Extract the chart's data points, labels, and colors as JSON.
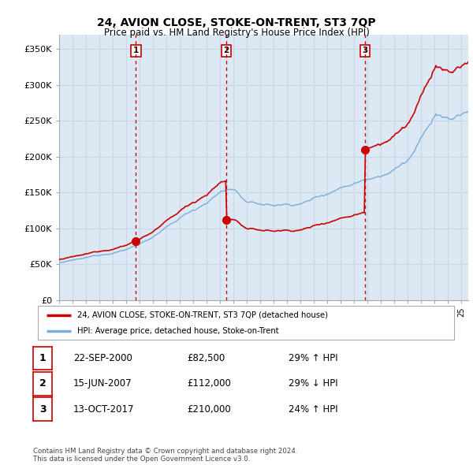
{
  "title": "24, AVION CLOSE, STOKE-ON-TRENT, ST3 7QP",
  "subtitle": "Price paid vs. HM Land Registry's House Price Index (HPI)",
  "ylabel_ticks": [
    "£0",
    "£50K",
    "£100K",
    "£150K",
    "£200K",
    "£250K",
    "£300K",
    "£350K"
  ],
  "ytick_values": [
    0,
    50000,
    100000,
    150000,
    200000,
    250000,
    300000,
    350000
  ],
  "ylim": [
    0,
    370000
  ],
  "xlim_start": 1995.0,
  "xlim_end": 2025.5,
  "transactions": [
    {
      "date_num": 2000.72,
      "price": 82500,
      "label": "1"
    },
    {
      "date_num": 2007.46,
      "price": 112000,
      "label": "2"
    },
    {
      "date_num": 2017.79,
      "price": 210000,
      "label": "3"
    }
  ],
  "vline_dates": [
    2000.72,
    2007.46,
    2017.79
  ],
  "legend_entries": [
    "24, AVION CLOSE, STOKE-ON-TRENT, ST3 7QP (detached house)",
    "HPI: Average price, detached house, Stoke-on-Trent"
  ],
  "table_rows": [
    {
      "label": "1",
      "date": "22-SEP-2000",
      "price": "£82,500",
      "hpi": "29% ↑ HPI"
    },
    {
      "label": "2",
      "date": "15-JUN-2007",
      "price": "£112,000",
      "hpi": "29% ↓ HPI"
    },
    {
      "label": "3",
      "date": "13-OCT-2017",
      "price": "£210,000",
      "hpi": "24% ↑ HPI"
    }
  ],
  "footer": "Contains HM Land Registry data © Crown copyright and database right 2024.\nThis data is licensed under the Open Government Licence v3.0.",
  "price_line_color": "#cc0000",
  "hpi_line_color": "#7aaddc",
  "vline_color": "#cc0000",
  "grid_color": "#c8d8e8",
  "plot_bg_color": "#dce8f4",
  "background_color": "#ffffff",
  "label_box_color": "#cc0000"
}
